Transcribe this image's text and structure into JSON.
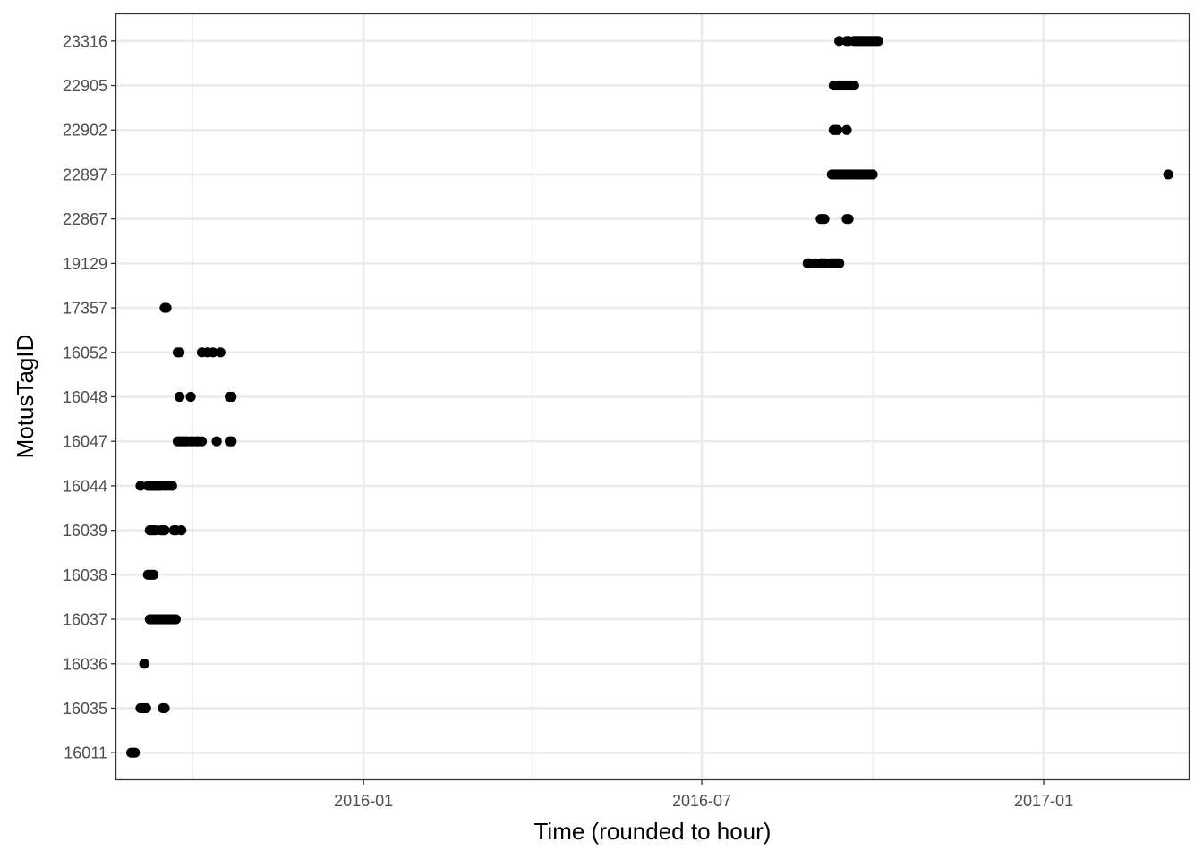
{
  "chart_data": {
    "type": "scatter",
    "title": "",
    "xlabel": "Time (rounded to hour)",
    "ylabel": "MotusTagID",
    "x_type": "date",
    "xlim": [
      "2015-08-21",
      "2017-03-20"
    ],
    "x_major_ticks": [
      "2016-01-01",
      "2016-07-01",
      "2017-01-01"
    ],
    "x_tick_labels": [
      "2016-01",
      "2016-07",
      "2017-01"
    ],
    "x_minor_ticks": [
      "2015-10-01",
      "2016-04-01",
      "2016-10-01",
      "2017-04-01"
    ],
    "categories": [
      "16011",
      "16035",
      "16036",
      "16037",
      "16038",
      "16039",
      "16044",
      "16047",
      "16048",
      "16052",
      "17357",
      "19129",
      "22867",
      "22897",
      "22902",
      "22905",
      "23316"
    ],
    "grid": true,
    "legend": "none",
    "point_color": "#000000",
    "points": [
      {
        "id": "16011",
        "t": [
          "2015-08-29",
          "2015-08-30",
          "2015-08-31"
        ]
      },
      {
        "id": "16035",
        "t": [
          "2015-09-03",
          "2015-09-04",
          "2015-09-05",
          "2015-09-06",
          "2015-09-15",
          "2015-09-16"
        ]
      },
      {
        "id": "16036",
        "t": [
          "2015-09-05"
        ]
      },
      {
        "id": "16037",
        "t": [
          "2015-09-08",
          "2015-09-09",
          "2015-09-10",
          "2015-09-11",
          "2015-09-12",
          "2015-09-13",
          "2015-09-14",
          "2015-09-15",
          "2015-09-16",
          "2015-09-17",
          "2015-09-18",
          "2015-09-19",
          "2015-09-20",
          "2015-09-21",
          "2015-09-22"
        ]
      },
      {
        "id": "16038",
        "t": [
          "2015-09-07",
          "2015-09-08",
          "2015-09-09",
          "2015-09-10"
        ]
      },
      {
        "id": "16039",
        "t": [
          "2015-09-08",
          "2015-09-09",
          "2015-09-10",
          "2015-09-11",
          "2015-09-14",
          "2015-09-15",
          "2015-09-16",
          "2015-09-21",
          "2015-09-22",
          "2015-09-25"
        ]
      },
      {
        "id": "16044",
        "t": [
          "2015-09-03",
          "2015-09-07",
          "2015-09-08",
          "2015-09-09",
          "2015-09-10",
          "2015-09-11",
          "2015-09-12",
          "2015-09-13",
          "2015-09-14",
          "2015-09-16",
          "2015-09-18",
          "2015-09-20"
        ]
      },
      {
        "id": "16047",
        "t": [
          "2015-09-23",
          "2015-09-24",
          "2015-09-25",
          "2015-09-26",
          "2015-09-27",
          "2015-09-28",
          "2015-09-30",
          "2015-10-01",
          "2015-10-03",
          "2015-10-04",
          "2015-10-06",
          "2015-10-14",
          "2015-10-21",
          "2015-10-22"
        ]
      },
      {
        "id": "16048",
        "t": [
          "2015-09-24",
          "2015-09-30",
          "2015-10-21",
          "2015-10-22"
        ]
      },
      {
        "id": "16052",
        "t": [
          "2015-09-23",
          "2015-09-24",
          "2015-10-06",
          "2015-10-09",
          "2015-10-12",
          "2015-10-16"
        ]
      },
      {
        "id": "17357",
        "t": [
          "2015-09-16",
          "2015-09-17"
        ]
      },
      {
        "id": "19129",
        "t": [
          "2016-08-27",
          "2016-08-28",
          "2016-08-31",
          "2016-09-03",
          "2016-09-04",
          "2016-09-05",
          "2016-09-06",
          "2016-09-08",
          "2016-09-09",
          "2016-09-10",
          "2016-09-11",
          "2016-09-12",
          "2016-09-13"
        ]
      },
      {
        "id": "22867",
        "t": [
          "2016-09-03",
          "2016-09-04",
          "2016-09-05",
          "2016-09-17",
          "2016-09-18"
        ]
      },
      {
        "id": "22897",
        "t": [
          "2016-09-09",
          "2016-09-10",
          "2016-09-11",
          "2016-09-12",
          "2016-09-13",
          "2016-09-14",
          "2016-09-15",
          "2016-09-16",
          "2016-09-17",
          "2016-09-18",
          "2016-09-19",
          "2016-09-20",
          "2016-09-21",
          "2016-09-22",
          "2016-09-23",
          "2016-09-24",
          "2016-09-25",
          "2016-09-26",
          "2016-09-27",
          "2016-09-28",
          "2016-09-29",
          "2016-09-30",
          "2016-10-01",
          "2017-03-09"
        ]
      },
      {
        "id": "22902",
        "t": [
          "2016-09-10",
          "2016-09-11",
          "2016-09-12",
          "2016-09-17"
        ]
      },
      {
        "id": "22905",
        "t": [
          "2016-09-10",
          "2016-09-11",
          "2016-09-12",
          "2016-09-13",
          "2016-09-14",
          "2016-09-15",
          "2016-09-16",
          "2016-09-17",
          "2016-09-18",
          "2016-09-19",
          "2016-09-20",
          "2016-09-21"
        ]
      },
      {
        "id": "23316",
        "t": [
          "2016-09-13",
          "2016-09-17",
          "2016-09-18",
          "2016-09-21",
          "2016-09-22",
          "2016-09-23",
          "2016-09-24",
          "2016-09-25",
          "2016-09-26",
          "2016-09-27",
          "2016-09-28",
          "2016-09-29",
          "2016-09-30",
          "2016-10-01",
          "2016-10-02",
          "2016-10-03",
          "2016-10-04"
        ]
      }
    ]
  }
}
